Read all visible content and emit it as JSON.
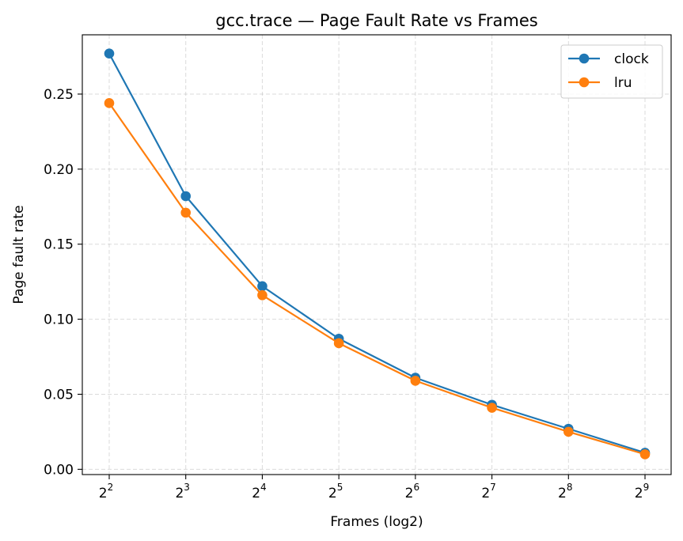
{
  "chart_data": {
    "type": "line",
    "title": "gcc.trace — Page Fault Rate vs Frames",
    "xlabel": "Frames (log2)",
    "ylabel": "Page fault rate",
    "x_scale": "log2",
    "x": [
      4,
      8,
      16,
      32,
      64,
      128,
      256,
      512
    ],
    "x_tick_labels": [
      {
        "base": "2",
        "exp": "2"
      },
      {
        "base": "2",
        "exp": "3"
      },
      {
        "base": "2",
        "exp": "4"
      },
      {
        "base": "2",
        "exp": "5"
      },
      {
        "base": "2",
        "exp": "6"
      },
      {
        "base": "2",
        "exp": "7"
      },
      {
        "base": "2",
        "exp": "8"
      },
      {
        "base": "2",
        "exp": "9"
      }
    ],
    "y_ticks": [
      0.0,
      0.05,
      0.1,
      0.15,
      0.2,
      0.25
    ],
    "y_tick_labels": [
      "0.00",
      "0.05",
      "0.10",
      "0.15",
      "0.20",
      "0.25"
    ],
    "ylim": [
      -0.0035,
      0.2895
    ],
    "grid": true,
    "legend_position": "top-right",
    "series": [
      {
        "name": "clock",
        "color": "#1f77b4",
        "values": [
          0.277,
          0.182,
          0.122,
          0.087,
          0.061,
          0.043,
          0.027,
          0.011
        ]
      },
      {
        "name": "lru",
        "color": "#ff7f0e",
        "values": [
          0.244,
          0.171,
          0.116,
          0.084,
          0.059,
          0.041,
          0.025,
          0.01
        ]
      }
    ]
  }
}
